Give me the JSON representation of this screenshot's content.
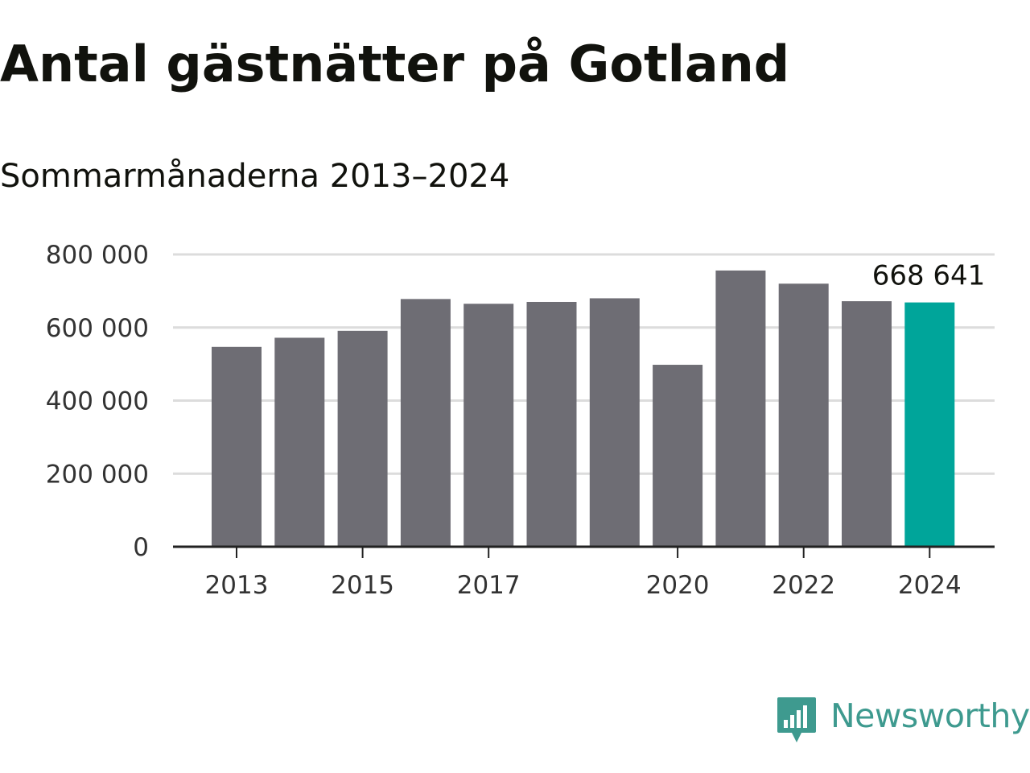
{
  "chart_data": {
    "type": "bar",
    "title": "Antal gästnätter på Gotland",
    "subtitle": "Sommarmånaderna 2013–2024",
    "categories": [
      "2013",
      "2014",
      "2015",
      "2016",
      "2017",
      "2018",
      "2019",
      "2020",
      "2021",
      "2022",
      "2023",
      "2024"
    ],
    "x_tick_labels": [
      "2013",
      "2015",
      "2017",
      "2020",
      "2022",
      "2024"
    ],
    "values": [
      547000,
      572000,
      591000,
      678000,
      665000,
      670000,
      680000,
      498000,
      756000,
      720000,
      672000,
      668641
    ],
    "ylim": [
      0,
      800000
    ],
    "y_ticks": [
      0,
      200000,
      400000,
      600000,
      800000
    ],
    "y_tick_labels": [
      "0",
      "200 000",
      "400 000",
      "600 000",
      "800 000"
    ],
    "highlight_category": "2024",
    "highlight_label": "668 641",
    "colors": {
      "bar": "#6e6d74",
      "highlight": "#00a59a",
      "grid": "#dcdcdc",
      "axis": "#222222"
    },
    "grid": true
  },
  "brand": {
    "name": "Newsworthy",
    "icon": "bar-chart-speech-bubble-icon",
    "color": "#3e9a8f"
  }
}
